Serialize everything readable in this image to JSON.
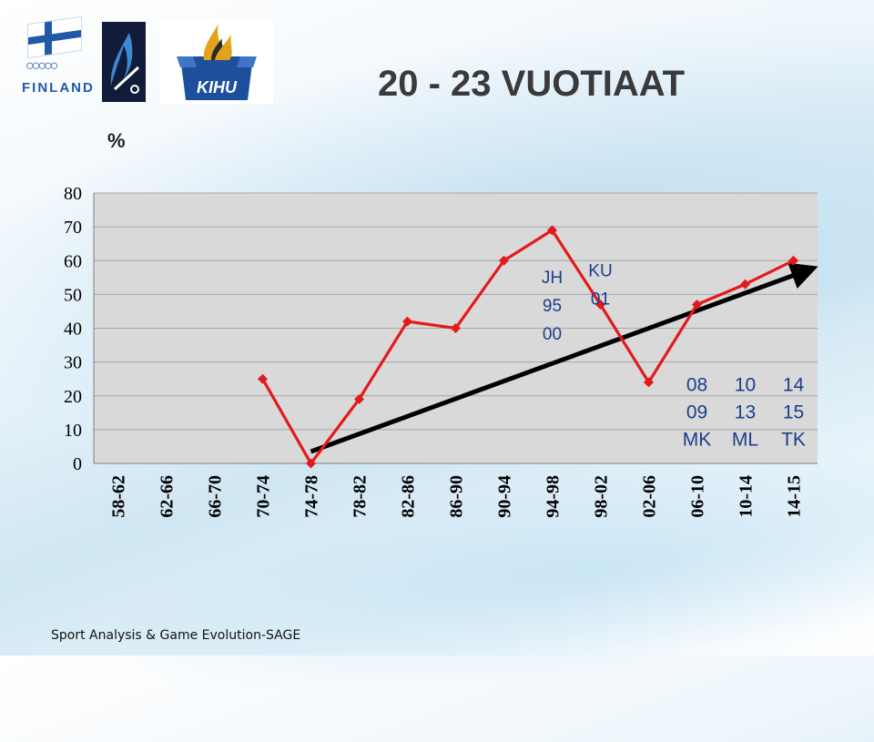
{
  "title": "20 - 23 VUOTIAAT",
  "footer": "Sport Analysis & Game Evolution-SAGE",
  "logos": {
    "finland_text": "FINLAND",
    "kihu_text": "KIHU",
    "rings_glyph": "○○○○○"
  },
  "colors": {
    "series_line": "#e31a1c",
    "trend_arrow": "#000000",
    "plot_bg": "#d9d9d9",
    "grid": "#a6a6a6",
    "annotation": "#1a3f8c"
  },
  "chart_data": {
    "type": "line",
    "ylabel": "%",
    "ylim": [
      0,
      80
    ],
    "yticks": [
      0,
      10,
      20,
      30,
      40,
      50,
      60,
      70,
      80
    ],
    "grid": true,
    "categories": [
      "58-62",
      "62-66",
      "66-70",
      "70-74",
      "74-78",
      "78-82",
      "82-86",
      "86-90",
      "90-94",
      "94-98",
      "98-02",
      "02-06",
      "06-10",
      "10-14",
      "14-15"
    ],
    "series": [
      {
        "values": [
          null,
          null,
          null,
          25,
          0,
          19,
          42,
          40,
          60,
          69,
          47,
          24,
          47,
          53,
          60
        ]
      }
    ],
    "trend": {
      "from": {
        "x": "74-78",
        "y": 3.5
      },
      "to": {
        "x": "14-15",
        "y": 57
      }
    },
    "annotations": [
      {
        "lines": [
          "JH",
          "95",
          "00"
        ],
        "category": "94-98",
        "y": 55
      },
      {
        "lines": [
          "KU",
          "01"
        ],
        "category": "98-02",
        "y": 57
      },
      {
        "lines": [
          "08",
          "09",
          "MK"
        ],
        "category": "06-10",
        "y": 23
      },
      {
        "lines": [
          "10",
          "13",
          "ML"
        ],
        "category": "10-14",
        "y": 23
      },
      {
        "lines": [
          "14",
          "15",
          "TK"
        ],
        "category": "14-15",
        "y": 23
      }
    ]
  }
}
